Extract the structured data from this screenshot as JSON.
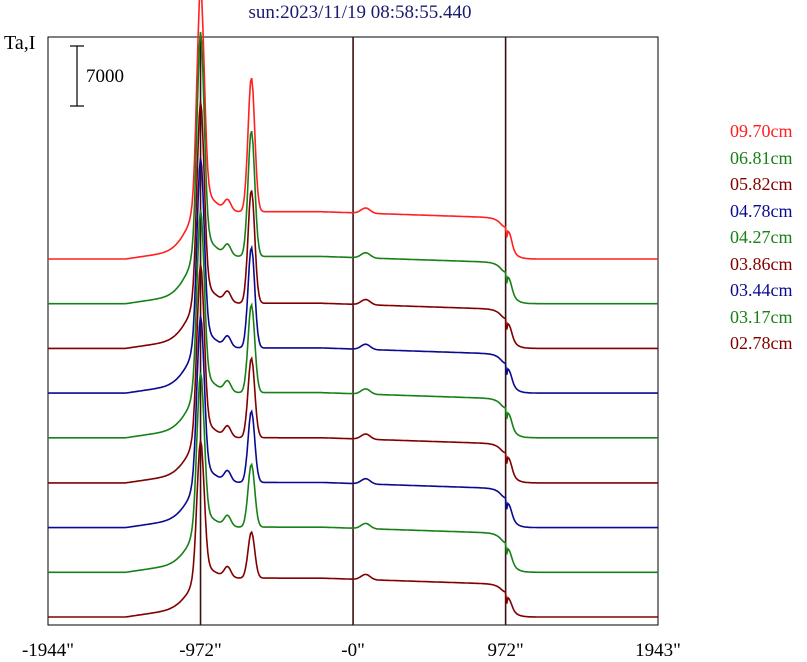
{
  "chart_data": {
    "type": "line",
    "title": "sun:2023/11/19 08:58:55.440",
    "ylabel": "Ta,I",
    "scale_bar_label": "7000",
    "x_ticks": [
      "-1944\"",
      "-972\"",
      "-0\"",
      "972\"",
      "1943\""
    ],
    "x_tick_values": [
      -1944,
      -972,
      0,
      972,
      1943
    ],
    "xlim": [
      -1944,
      1943
    ],
    "vertical_lines": [
      -972,
      0,
      972
    ],
    "grid": false,
    "legend_position": "right",
    "series": [
      {
        "name": "09.70cm",
        "color": "#ff2020",
        "offset": 1.0,
        "peak1": 1.0,
        "peak2": 0.64,
        "plateau": 0.17,
        "limb": 0.16
      },
      {
        "name": "06.81cm",
        "color": "#178017",
        "offset": 0.889,
        "peak1": 1.0,
        "peak2": 0.6,
        "plateau": 0.17,
        "limb": 0.14
      },
      {
        "name": "05.82cm",
        "color": "#800000",
        "offset": 0.778,
        "peak1": 0.9,
        "peak2": 0.54,
        "plateau": 0.16,
        "limb": 0.13
      },
      {
        "name": "04.78cm",
        "color": "#0a0a90",
        "offset": 0.667,
        "peak1": 0.85,
        "peak2": 0.48,
        "plateau": 0.16,
        "limb": 0.12
      },
      {
        "name": "04.27cm",
        "color": "#178017",
        "offset": 0.556,
        "peak1": 0.82,
        "peak2": 0.42,
        "plateau": 0.16,
        "limb": 0.13
      },
      {
        "name": "03.86cm",
        "color": "#800000",
        "offset": 0.444,
        "peak1": 0.78,
        "peak2": 0.38,
        "plateau": 0.16,
        "limb": 0.14
      },
      {
        "name": "03.44cm",
        "color": "#0a0a90",
        "offset": 0.333,
        "peak1": 0.75,
        "peak2": 0.34,
        "plateau": 0.16,
        "limb": 0.12
      },
      {
        "name": "03.17cm",
        "color": "#178017",
        "offset": 0.222,
        "peak1": 0.7,
        "peak2": 0.3,
        "plateau": 0.16,
        "limb": 0.11
      },
      {
        "name": "02.78cm",
        "color": "#800000",
        "offset": 0.111,
        "peak1": 0.62,
        "peak2": 0.22,
        "plateau": 0.13,
        "limb": 0.09
      }
    ]
  }
}
